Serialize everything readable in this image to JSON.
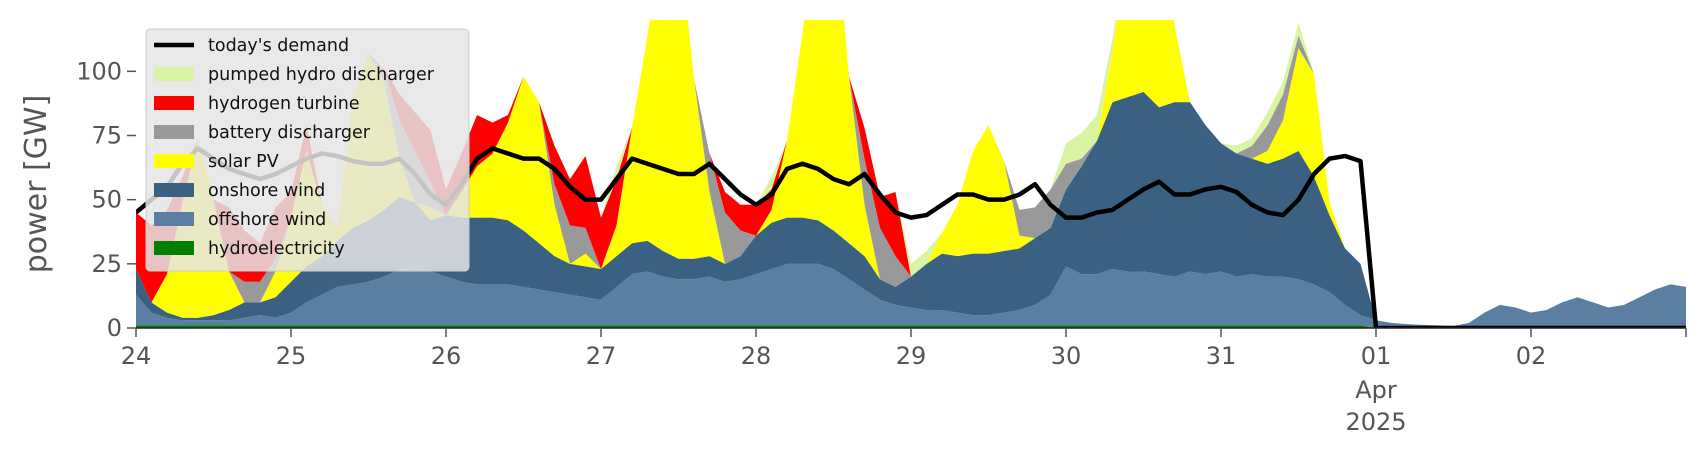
{
  "chart_data": {
    "type": "area",
    "ylabel": "power [GW]",
    "ylim": [
      0,
      120
    ],
    "yticks": [
      0,
      25,
      50,
      75,
      100
    ],
    "xlim": [
      0,
      10
    ],
    "xticks": [
      {
        "x": 0,
        "label": "24"
      },
      {
        "x": 1,
        "label": "25"
      },
      {
        "x": 2,
        "label": "26"
      },
      {
        "x": 3,
        "label": "27"
      },
      {
        "x": 4,
        "label": "28"
      },
      {
        "x": 5,
        "label": "29"
      },
      {
        "x": 6,
        "label": "30"
      },
      {
        "x": 7,
        "label": "31"
      },
      {
        "x": 8,
        "label": "01",
        "sub": [
          "Apr",
          "2025"
        ]
      },
      {
        "x": 9,
        "label": "02"
      }
    ],
    "legend_position": "top-left",
    "grid": false,
    "x": [
      0,
      0.1,
      0.2,
      0.3,
      0.4,
      0.5,
      0.6,
      0.7,
      0.8,
      0.9,
      1,
      1.1,
      1.2,
      1.3,
      1.4,
      1.5,
      1.6,
      1.7,
      1.8,
      1.9,
      2,
      2.1,
      2.2,
      2.3,
      2.4,
      2.5,
      2.6,
      2.7,
      2.8,
      2.9,
      3,
      3.1,
      3.2,
      3.3,
      3.4,
      3.5,
      3.6,
      3.7,
      3.8,
      3.9,
      4,
      4.1,
      4.2,
      4.3,
      4.4,
      4.5,
      4.6,
      4.7,
      4.8,
      4.9,
      5,
      5.1,
      5.2,
      5.3,
      5.4,
      5.5,
      5.6,
      5.7,
      5.8,
      5.9,
      6,
      6.1,
      6.2,
      6.3,
      6.4,
      6.5,
      6.6,
      6.7,
      6.8,
      6.9,
      7,
      7.1,
      7.2,
      7.3,
      7.4,
      7.5,
      7.6,
      7.7,
      7.8,
      7.9,
      8,
      8.1,
      8.2,
      8.3,
      8.4,
      8.5,
      8.6,
      8.7,
      8.8,
      8.9,
      9,
      9.1,
      9.2,
      9.3,
      9.4,
      9.5,
      9.6,
      9.7,
      9.8,
      9.9,
      10
    ],
    "series": [
      {
        "name": "hydroelectricity",
        "color": "#008000",
        "values": [
          1,
          1,
          1,
          1,
          1,
          1,
          1,
          1,
          1,
          1,
          1,
          1,
          1,
          1,
          1,
          1,
          1,
          1,
          1,
          1,
          1,
          1,
          1,
          1,
          1,
          1,
          1,
          1,
          1,
          1,
          1,
          1,
          1,
          1,
          1,
          1,
          1,
          1,
          1,
          1,
          1,
          1,
          1,
          1,
          1,
          1,
          1,
          1,
          1,
          1,
          1,
          1,
          1,
          1,
          1,
          1,
          1,
          1,
          1,
          1,
          1,
          1,
          1,
          1,
          1,
          1,
          1,
          1,
          1,
          1,
          1,
          1,
          1,
          1,
          1,
          1,
          1,
          1,
          1,
          1,
          0,
          0,
          0,
          0,
          0,
          0,
          0,
          0,
          0,
          0,
          0,
          0,
          0,
          0,
          0,
          0,
          0,
          0,
          0,
          0,
          0
        ]
      },
      {
        "name": "offshore wind",
        "color": "#5a7fa3",
        "values": [
          12,
          5,
          3,
          2,
          2,
          2,
          2,
          3,
          4,
          3,
          5,
          9,
          12,
          15,
          16,
          17,
          19,
          22,
          23,
          21,
          19,
          17,
          16,
          16,
          16,
          15,
          14,
          13,
          12,
          11,
          10,
          15,
          20,
          21,
          19,
          18,
          18,
          19,
          17,
          18,
          20,
          22,
          24,
          24,
          24,
          22,
          18,
          14,
          10,
          8,
          7,
          6,
          6,
          5,
          4,
          4,
          5,
          6,
          8,
          12,
          23,
          20,
          20,
          22,
          21,
          21,
          20,
          19,
          21,
          20,
          21,
          19,
          20,
          19,
          19,
          18,
          16,
          13,
          8,
          4,
          3,
          2,
          1.5,
          1.2,
          1,
          0.8,
          2,
          6,
          9,
          8,
          6,
          7,
          10,
          12,
          10,
          8,
          9,
          12,
          15,
          17,
          16
        ]
      },
      {
        "name": "onshore wind",
        "color": "#3b6182",
        "values": [
          10,
          4,
          2,
          1,
          1,
          2,
          4,
          6,
          5,
          8,
          12,
          14,
          15,
          18,
          22,
          24,
          26,
          28,
          25,
          20,
          24,
          25,
          26,
          26,
          25,
          22,
          18,
          14,
          12,
          12,
          12,
          12,
          12,
          12,
          10,
          8,
          8,
          8,
          7,
          9,
          15,
          18,
          18,
          18,
          17,
          15,
          14,
          13,
          8,
          7,
          12,
          18,
          22,
          22,
          24,
          24,
          24,
          24,
          26,
          26,
          30,
          42,
          52,
          65,
          68,
          70,
          65,
          68,
          66,
          58,
          50,
          48,
          45,
          44,
          46,
          50,
          42,
          30,
          22,
          20,
          0,
          0,
          0,
          0,
          0,
          0,
          0,
          0,
          0,
          0,
          0,
          0,
          0,
          0,
          0,
          0,
          0,
          0,
          0,
          0,
          0
        ]
      },
      {
        "name": "solar PV",
        "color": "#ffff00",
        "values": [
          0,
          0,
          15,
          45,
          70,
          45,
          15,
          0,
          0,
          10,
          25,
          45,
          20,
          5,
          50,
          65,
          50,
          15,
          0,
          5,
          0,
          10,
          20,
          25,
          38,
          60,
          55,
          20,
          0,
          5,
          0,
          12,
          45,
          80,
          125,
          128,
          70,
          25,
          0,
          0,
          0,
          5,
          30,
          72,
          125,
          130,
          65,
          20,
          0,
          0,
          0,
          0,
          8,
          20,
          40,
          50,
          35,
          5,
          0,
          0,
          0,
          0,
          0,
          20,
          60,
          100,
          70,
          30,
          0,
          0,
          0,
          0,
          0,
          5,
          15,
          40,
          40,
          5,
          0,
          0,
          0,
          0,
          0,
          0,
          0,
          0,
          0,
          0,
          0,
          0,
          0,
          0,
          0,
          0,
          0,
          0,
          0,
          0,
          0,
          0,
          0
        ]
      },
      {
        "name": "battery discharger",
        "color": "#999999",
        "values": [
          0,
          0,
          0,
          0,
          0,
          0,
          0,
          8,
          8,
          5,
          0,
          0,
          0,
          0,
          0,
          0,
          5,
          15,
          20,
          10,
          0,
          0,
          0,
          0,
          0,
          0,
          0,
          8,
          15,
          10,
          0,
          0,
          0,
          0,
          0,
          0,
          0,
          15,
          20,
          10,
          0,
          0,
          0,
          0,
          0,
          0,
          0,
          18,
          20,
          12,
          0,
          0,
          0,
          0,
          0,
          0,
          0,
          10,
          12,
          15,
          10,
          3,
          0,
          0,
          0,
          0,
          0,
          0,
          0,
          0,
          0,
          0,
          5,
          10,
          10,
          5,
          0,
          0,
          0,
          0,
          0,
          0,
          0,
          0,
          0,
          0,
          0,
          0,
          0,
          0,
          0,
          0,
          0,
          0,
          0,
          0,
          0,
          0,
          0,
          0,
          0
        ]
      },
      {
        "name": "hydrogen turbine",
        "color": "#ff0000",
        "values": [
          22,
          30,
          25,
          10,
          0,
          0,
          25,
          20,
          15,
          20,
          10,
          10,
          0,
          0,
          0,
          0,
          0,
          10,
          15,
          20,
          10,
          15,
          20,
          12,
          3,
          0,
          0,
          15,
          18,
          28,
          20,
          18,
          0,
          0,
          0,
          0,
          0,
          0,
          8,
          10,
          12,
          8,
          0,
          0,
          0,
          0,
          0,
          12,
          12,
          25,
          0,
          0,
          0,
          0,
          0,
          0,
          0,
          0,
          0,
          0,
          0,
          0,
          0,
          0,
          0,
          0,
          0,
          0,
          0,
          0,
          0,
          0,
          0,
          0,
          0,
          0,
          0,
          0,
          0,
          0,
          0,
          0,
          0,
          0,
          0,
          0,
          0,
          0,
          0,
          0,
          0,
          0,
          0,
          0,
          0,
          0,
          0,
          0,
          0,
          0,
          0
        ]
      },
      {
        "name": "pumped hydro discharger",
        "color": "#d9f5a3",
        "values": [
          0,
          0,
          0,
          0,
          0,
          0,
          0,
          0,
          0,
          0,
          0,
          0,
          0,
          0,
          0,
          0,
          0,
          0,
          0,
          0,
          0,
          0,
          0,
          0,
          0,
          0,
          0,
          0,
          0,
          0,
          0,
          5,
          0,
          0,
          0,
          0,
          0,
          0,
          0,
          0,
          0,
          5,
          0,
          0,
          0,
          0,
          0,
          0,
          0,
          0,
          5,
          5,
          0,
          0,
          0,
          0,
          0,
          0,
          0,
          0,
          8,
          10,
          10,
          5,
          0,
          0,
          0,
          0,
          0,
          0,
          0,
          3,
          3,
          5,
          5,
          5,
          0,
          0,
          0,
          0,
          0,
          0,
          0,
          0,
          0,
          0,
          0,
          0,
          0,
          0,
          0,
          0,
          0,
          0,
          0,
          0,
          0,
          0,
          0,
          0,
          0
        ]
      },
      {
        "name": "today's demand",
        "color": "#000000",
        "kind": "line",
        "values": [
          45,
          50,
          55,
          64,
          70,
          66,
          62,
          60,
          58,
          60,
          63,
          66,
          68,
          67,
          65,
          64,
          64,
          66,
          60,
          52,
          48,
          56,
          66,
          70,
          68,
          66,
          66,
          62,
          55,
          50,
          50,
          58,
          66,
          64,
          62,
          60,
          60,
          64,
          58,
          52,
          48,
          52,
          62,
          64,
          62,
          58,
          56,
          60,
          52,
          45,
          43,
          44,
          48,
          52,
          52,
          50,
          50,
          52,
          56,
          48,
          43,
          43,
          45,
          46,
          50,
          54,
          57,
          52,
          52,
          54,
          55,
          53,
          48,
          45,
          44,
          50,
          60,
          66,
          67,
          65,
          0,
          0,
          0,
          0,
          0,
          0,
          0,
          0,
          0,
          0,
          0,
          0,
          0,
          0,
          0,
          0,
          0,
          0,
          0,
          0,
          0
        ]
      }
    ],
    "legend_order": [
      "today's demand",
      "pumped hydro discharger",
      "hydrogen turbine",
      "battery discharger",
      "solar PV",
      "onshore wind",
      "offshore wind",
      "hydroelectricity"
    ]
  }
}
